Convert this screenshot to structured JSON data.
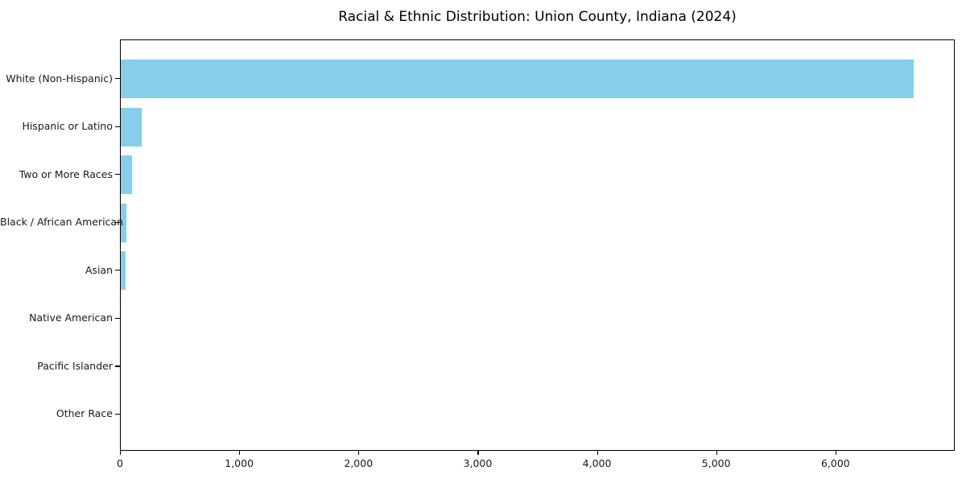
{
  "chart_data": {
    "type": "bar",
    "orientation": "horizontal",
    "title": "Racial & Ethnic Distribution: Union County, Indiana (2024)",
    "categories": [
      "White (Non-Hispanic)",
      "Hispanic or Latino",
      "Two or More Races",
      "Black / African American",
      "Asian",
      "Native American",
      "Pacific Islander",
      "Other Race"
    ],
    "values": [
      6650,
      175,
      95,
      47,
      40,
      5,
      1,
      2
    ],
    "xlabel": "",
    "ylabel": "",
    "xlim": [
      0,
      7000
    ],
    "xticks": [
      0,
      1000,
      2000,
      3000,
      4000,
      5000,
      6000
    ],
    "xtick_labels": [
      "0",
      "1,000",
      "2,000",
      "3,000",
      "4,000",
      "5,000",
      "6,000"
    ],
    "bar_color": "#87CEEB",
    "axis_color": "#000000",
    "text_color": "#1a1a1a",
    "background_color": "#ffffff",
    "grid": false,
    "legend": null
  }
}
